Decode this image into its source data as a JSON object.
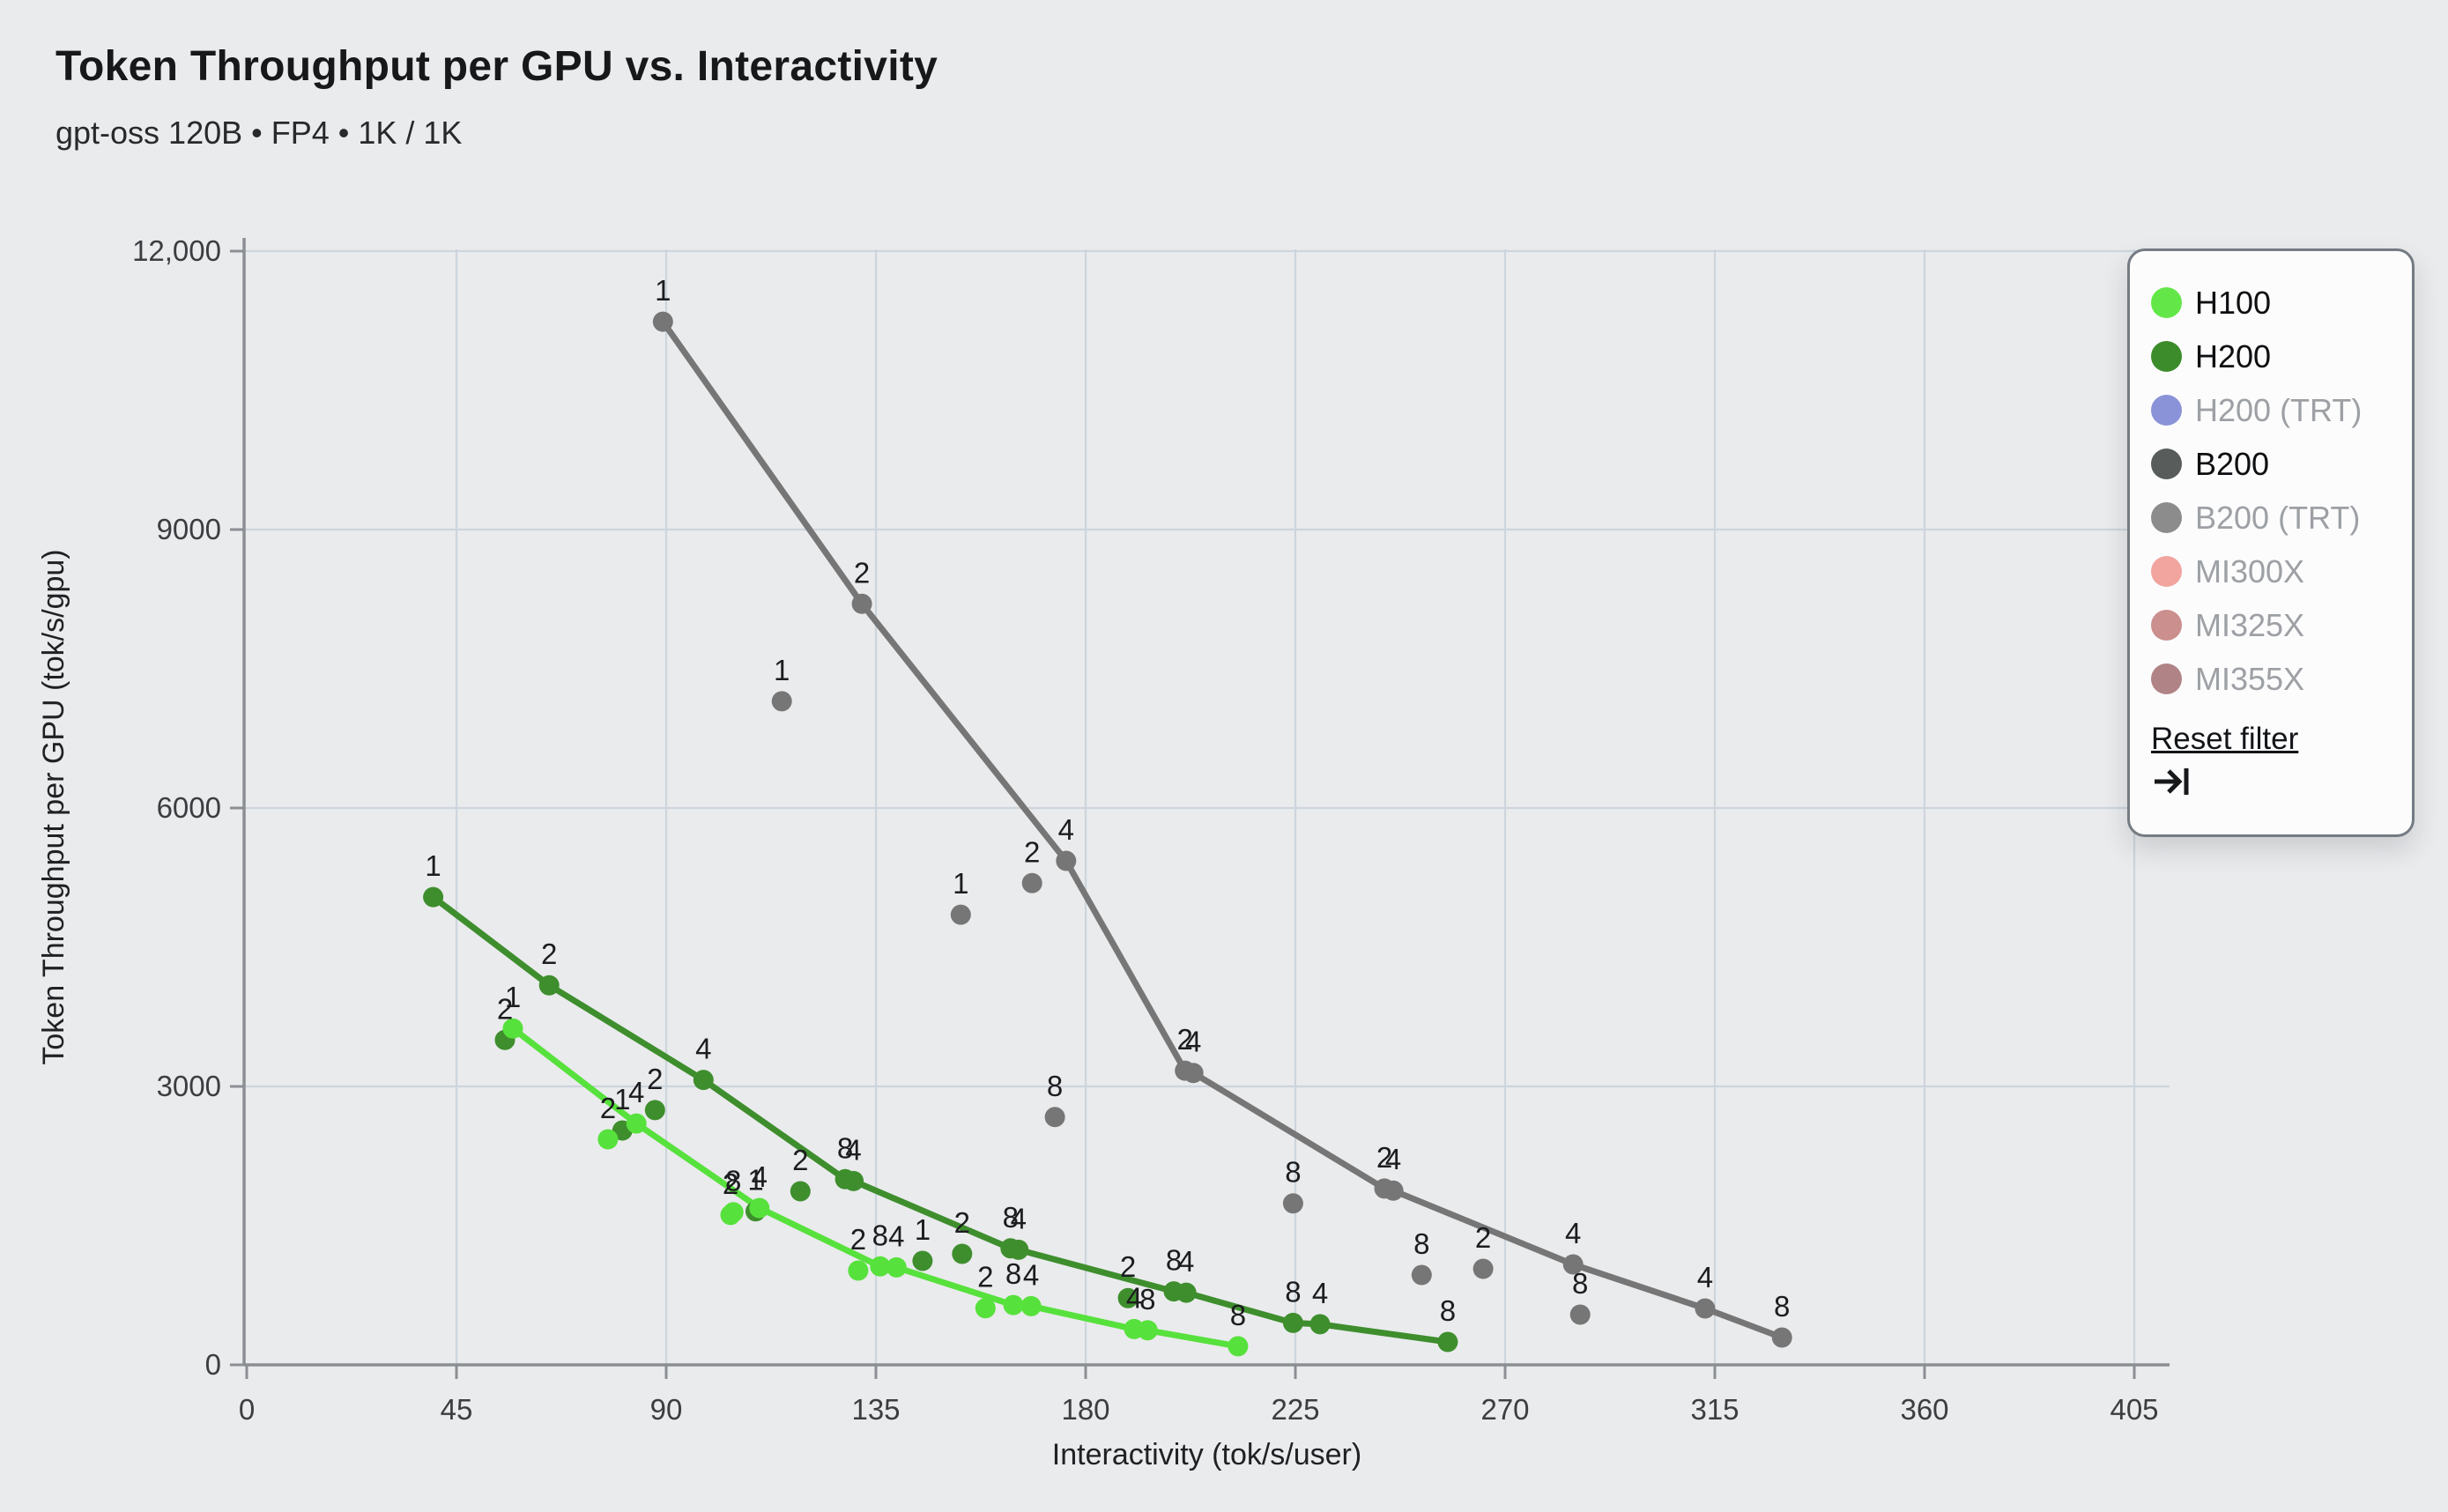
{
  "header": {
    "title": "Token Throughput per GPU vs. Interactivity",
    "subtitle": "gpt-oss 120B • FP4 • 1K / 1K"
  },
  "colors": {
    "page_background": "#eaebed",
    "gridline": "#cdd5dd",
    "axis": "#8b8f94",
    "tick_label": "#3b3d40",
    "point_label": "#1c1d1f",
    "legend_active_text": "#0e0f11",
    "legend_inactive_text": "#9da0a4"
  },
  "legend": {
    "items": [
      {
        "label": "H100",
        "color": "#63e748",
        "active": true
      },
      {
        "label": "H200",
        "color": "#3c8c2b",
        "active": true
      },
      {
        "label": "H200 (TRT)",
        "color": "#8a93d8",
        "active": false
      },
      {
        "label": "B200",
        "color": "#585c5a",
        "active": true
      },
      {
        "label": "B200 (TRT)",
        "color": "#8c8c8c",
        "active": false
      },
      {
        "label": "MI300X",
        "color": "#f2a49e",
        "active": false
      },
      {
        "label": "MI325X",
        "color": "#cb8f8d",
        "active": false
      },
      {
        "label": "MI355X",
        "color": "#b08486",
        "active": false
      }
    ],
    "reset_label": "Reset filter",
    "reset_icon": "arrow-to-bar"
  },
  "chart_data": {
    "type": "scatter",
    "title": "Token Throughput per GPU vs. Interactivity",
    "xlabel": "Interactivity (tok/s/user)",
    "ylabel": "Token Throughput per GPU (tok/s/gpu)",
    "xlim": [
      0,
      405
    ],
    "ylim": [
      0,
      12000
    ],
    "xticks": [
      0,
      45,
      90,
      135,
      180,
      225,
      270,
      315,
      360,
      405
    ],
    "yticks": [
      0,
      3000,
      6000,
      9000,
      12000
    ],
    "ytick_labels": [
      "0",
      "3000",
      "6000",
      "9000",
      "12,000"
    ],
    "grid": true,
    "legend_position": "upper-right",
    "point_label_meaning": "tensor-parallel GPU count per point",
    "series": [
      {
        "name": "B200",
        "color": "#767676",
        "points": [
          {
            "x": 89.3,
            "y": 11240,
            "label": "1",
            "on_line": true
          },
          {
            "x": 114.8,
            "y": 7150,
            "label": "1",
            "on_line": false
          },
          {
            "x": 132.0,
            "y": 8200,
            "label": "2",
            "on_line": true
          },
          {
            "x": 153.2,
            "y": 4850,
            "label": "1",
            "on_line": false
          },
          {
            "x": 168.5,
            "y": 5190,
            "label": "2",
            "on_line": false
          },
          {
            "x": 175.8,
            "y": 5430,
            "label": "4",
            "on_line": true
          },
          {
            "x": 173.4,
            "y": 2670,
            "label": "8",
            "on_line": false
          },
          {
            "x": 201.3,
            "y": 3170,
            "label": "2",
            "on_line": true
          },
          {
            "x": 203.1,
            "y": 3145,
            "label": "4",
            "on_line": true
          },
          {
            "x": 224.5,
            "y": 1740,
            "label": "8",
            "on_line": false
          },
          {
            "x": 244.1,
            "y": 1900,
            "label": "2",
            "on_line": true
          },
          {
            "x": 246.0,
            "y": 1878,
            "label": "4",
            "on_line": true
          },
          {
            "x": 252.1,
            "y": 968,
            "label": "8",
            "on_line": false
          },
          {
            "x": 265.3,
            "y": 1035,
            "label": "2",
            "on_line": false
          },
          {
            "x": 284.6,
            "y": 1082,
            "label": "4",
            "on_line": true
          },
          {
            "x": 286.1,
            "y": 541,
            "label": "8",
            "on_line": false
          },
          {
            "x": 312.9,
            "y": 608,
            "label": "4",
            "on_line": true
          },
          {
            "x": 329.4,
            "y": 294,
            "label": "8",
            "on_line": true
          }
        ]
      },
      {
        "name": "H200",
        "color": "#3e8e2d",
        "points": [
          {
            "x": 40.0,
            "y": 5040,
            "label": "1",
            "on_line": true
          },
          {
            "x": 55.4,
            "y": 3500,
            "label": "2",
            "on_line": false
          },
          {
            "x": 64.9,
            "y": 4090,
            "label": "2",
            "on_line": true
          },
          {
            "x": 80.6,
            "y": 2525,
            "label": "1",
            "on_line": false
          },
          {
            "x": 87.6,
            "y": 2745,
            "label": "2",
            "on_line": false
          },
          {
            "x": 98.0,
            "y": 3070,
            "label": "4",
            "on_line": true
          },
          {
            "x": 109.2,
            "y": 1655,
            "label": "1",
            "on_line": false
          },
          {
            "x": 118.8,
            "y": 1870,
            "label": "2",
            "on_line": false
          },
          {
            "x": 128.4,
            "y": 2000,
            "label": "8",
            "on_line": true
          },
          {
            "x": 130.2,
            "y": 1980,
            "label": "4",
            "on_line": true
          },
          {
            "x": 145.0,
            "y": 1120,
            "label": "1",
            "on_line": false
          },
          {
            "x": 153.5,
            "y": 1196,
            "label": "2",
            "on_line": false
          },
          {
            "x": 163.9,
            "y": 1255,
            "label": "8",
            "on_line": true
          },
          {
            "x": 165.6,
            "y": 1240,
            "label": "4",
            "on_line": true
          },
          {
            "x": 189.1,
            "y": 720,
            "label": "2",
            "on_line": false
          },
          {
            "x": 198.9,
            "y": 792,
            "label": "8",
            "on_line": true
          },
          {
            "x": 201.6,
            "y": 778,
            "label": "4",
            "on_line": true
          },
          {
            "x": 224.5,
            "y": 452,
            "label": "8",
            "on_line": true
          },
          {
            "x": 230.3,
            "y": 438,
            "label": "4",
            "on_line": true
          },
          {
            "x": 257.7,
            "y": 247,
            "label": "8",
            "on_line": true
          }
        ]
      },
      {
        "name": "H100",
        "color": "#57e13c",
        "points": [
          {
            "x": 57.1,
            "y": 3625,
            "label": "1",
            "on_line": true
          },
          {
            "x": 77.5,
            "y": 2430,
            "label": "2",
            "on_line": false
          },
          {
            "x": 83.6,
            "y": 2600,
            "label": "4",
            "on_line": true
          },
          {
            "x": 103.8,
            "y": 1615,
            "label": "2",
            "on_line": false
          },
          {
            "x": 104.4,
            "y": 1645,
            "label": "8",
            "on_line": false
          },
          {
            "x": 110.0,
            "y": 1690,
            "label": "4",
            "on_line": true
          },
          {
            "x": 131.2,
            "y": 1016,
            "label": "2",
            "on_line": false
          },
          {
            "x": 135.9,
            "y": 1060,
            "label": "8",
            "on_line": true
          },
          {
            "x": 139.4,
            "y": 1050,
            "label": "4",
            "on_line": true
          },
          {
            "x": 158.5,
            "y": 610,
            "label": "2",
            "on_line": false
          },
          {
            "x": 164.5,
            "y": 645,
            "label": "8",
            "on_line": true
          },
          {
            "x": 168.3,
            "y": 632,
            "label": "4",
            "on_line": true
          },
          {
            "x": 190.4,
            "y": 385,
            "label": "4",
            "on_line": true
          },
          {
            "x": 193.3,
            "y": 372,
            "label": "8",
            "on_line": true
          },
          {
            "x": 212.7,
            "y": 200,
            "label": "8",
            "on_line": true
          }
        ]
      }
    ]
  }
}
